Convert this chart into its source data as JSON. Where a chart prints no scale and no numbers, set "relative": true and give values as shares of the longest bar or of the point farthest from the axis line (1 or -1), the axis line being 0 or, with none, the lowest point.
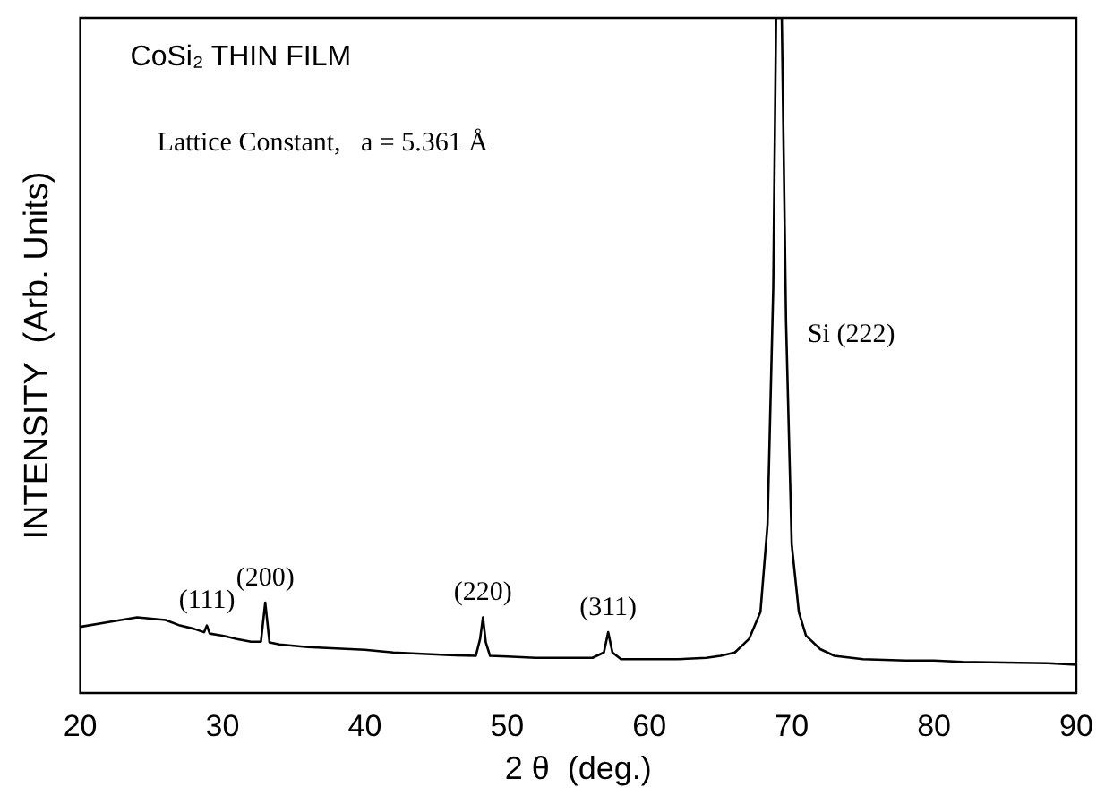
{
  "chart_data": {
    "type": "line",
    "relative": true,
    "xlabel": "2 θ  (deg.)",
    "ylabel": "INTENSITY  (Arb. Units)",
    "xlim": [
      20,
      90
    ],
    "xticks": [
      20,
      30,
      40,
      50,
      60,
      70,
      80,
      90
    ],
    "grid": false,
    "legend": false,
    "marker": "none",
    "line_style": "solid",
    "annotations": [
      "CoSi₂ THIN FILM",
      "Lattice Constant,   a = 5.361 Å",
      {
        "text": "(111)",
        "x": 28.9,
        "y": 0.1
      },
      {
        "text": "(200)",
        "x": 33,
        "y": 0.134
      },
      {
        "text": "(220)",
        "x": 48.3,
        "y": 0.112
      },
      {
        "text": "(311)",
        "x": 57.1,
        "y": 0.09
      },
      {
        "text": "Si (222)",
        "x": 69.1,
        "y": 0.53
      }
    ],
    "series": [
      {
        "color": "#000000",
        "x": [
          20,
          22,
          24,
          26,
          27,
          28,
          28.7,
          28.9,
          29.1,
          30,
          31,
          32,
          32.7,
          33,
          33.3,
          34,
          36,
          38,
          40,
          42,
          44,
          46,
          47.8,
          48.1,
          48.3,
          48.5,
          48.8,
          50,
          52,
          54,
          56,
          56.8,
          57.1,
          57.4,
          58,
          60,
          62,
          64,
          65,
          66,
          67,
          67.8,
          68.3,
          68.7,
          68.9,
          69.3,
          69.6,
          70,
          70.5,
          71,
          72,
          73,
          75,
          78,
          80,
          82,
          85,
          88,
          90
        ],
        "values": [
          0.098,
          0.105,
          0.112,
          0.108,
          0.1,
          0.095,
          0.09,
          0.1,
          0.088,
          0.085,
          0.08,
          0.076,
          0.076,
          0.134,
          0.075,
          0.072,
          0.068,
          0.066,
          0.064,
          0.06,
          0.058,
          0.056,
          0.055,
          0.08,
          0.112,
          0.075,
          0.055,
          0.054,
          0.052,
          0.052,
          0.052,
          0.06,
          0.09,
          0.06,
          0.05,
          0.05,
          0.05,
          0.052,
          0.055,
          0.06,
          0.08,
          0.12,
          0.25,
          0.6,
          1,
          1,
          0.55,
          0.22,
          0.12,
          0.085,
          0.065,
          0.055,
          0.05,
          0.048,
          0.048,
          0.046,
          0.045,
          0.044,
          0.042
        ]
      }
    ]
  }
}
